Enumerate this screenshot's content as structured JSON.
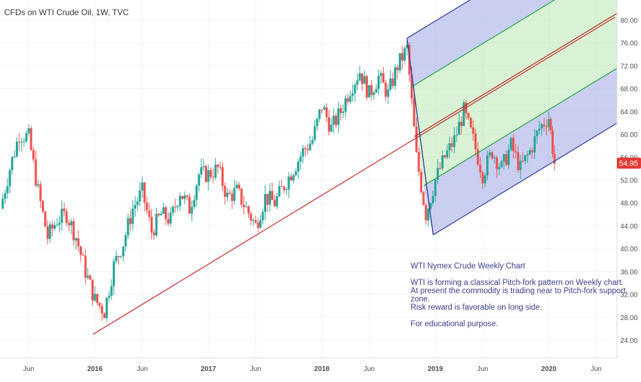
{
  "header": {
    "title": "CFDs on WTI Crude Oil, 1W, TVC"
  },
  "price_tag": {
    "value": "54.95",
    "color": "#e53935"
  },
  "annotation": {
    "lines": [
      "WTI Nymex Crude Weekly Chart",
      "",
      "WTI is forming a classical Pitch-fork pattern on Weekly chart.",
      "At present the commodity is trading near to Pitch-fork support",
      "zone.",
      "Risk reward is favorable on long side.",
      "",
      "For educational purpose."
    ]
  },
  "colors": {
    "up_candle": "#26a69a",
    "down_candle": "#ef5350",
    "trendline": "#c62828",
    "pitchfork_outer": "#283593",
    "pitchfork_inner": "#1b9e3e",
    "pitchfork_median": "#b71c1c",
    "zone_outer": "#9fa8e6",
    "zone_inner": "#b9e6b0",
    "grid": "#f0f3fa",
    "axis_text": "#4a4a4a"
  },
  "chart_data": {
    "type": "candlestick",
    "title": "CFDs on WTI Crude Oil, 1W, TVC",
    "x_axis": {
      "tick_labels": [
        "Jun",
        "2016",
        "Jun",
        "2017",
        "Jun",
        "2018",
        "Jun",
        "2019",
        "Jun",
        "2020",
        "Jun"
      ],
      "tick_dates": [
        "2015-06",
        "2016-01",
        "2016-06",
        "2017-01",
        "2017-06",
        "2018-01",
        "2018-06",
        "2019-01",
        "2019-06",
        "2020-01",
        "2020-06"
      ],
      "range": [
        "2015-03",
        "2020-08"
      ]
    },
    "y_axis": {
      "tick_labels": [
        "24.00",
        "28.00",
        "32.00",
        "36.00",
        "40.00",
        "44.00",
        "48.00",
        "52.00",
        "56.00",
        "60.00",
        "64.00",
        "68.00",
        "72.00",
        "76.00",
        "80.00"
      ],
      "range": [
        21.3,
        82.7
      ],
      "side": "right"
    },
    "grid": true,
    "last_price": 54.95,
    "price_path": [
      [
        "2015-03",
        47
      ],
      [
        "2015-04",
        54
      ],
      [
        "2015-05",
        60
      ],
      [
        "2015-06",
        59.5
      ],
      [
        "2015-07",
        50
      ],
      [
        "2015-08",
        42
      ],
      [
        "2015-09",
        45
      ],
      [
        "2015-10",
        46
      ],
      [
        "2015-11",
        42
      ],
      [
        "2015-12",
        36
      ],
      [
        "2016-01",
        31
      ],
      [
        "2016-02",
        29
      ],
      [
        "2016-03",
        37
      ],
      [
        "2016-04",
        41
      ],
      [
        "2016-05",
        47
      ],
      [
        "2016-06",
        50
      ],
      [
        "2016-07",
        43
      ],
      [
        "2016-08",
        46
      ],
      [
        "2016-09",
        45
      ],
      [
        "2016-10",
        50
      ],
      [
        "2016-11",
        47
      ],
      [
        "2016-12",
        53
      ],
      [
        "2017-01",
        53
      ],
      [
        "2017-02",
        54
      ],
      [
        "2017-03",
        49
      ],
      [
        "2017-04",
        50
      ],
      [
        "2017-05",
        47
      ],
      [
        "2017-06",
        44
      ],
      [
        "2017-07",
        49
      ],
      [
        "2017-08",
        48
      ],
      [
        "2017-09",
        51
      ],
      [
        "2017-10",
        54
      ],
      [
        "2017-11",
        57
      ],
      [
        "2017-12",
        59
      ],
      [
        "2018-01",
        65
      ],
      [
        "2018-02",
        61
      ],
      [
        "2018-03",
        64
      ],
      [
        "2018-04",
        68
      ],
      [
        "2018-05",
        71
      ],
      [
        "2018-06",
        67
      ],
      [
        "2018-07",
        70
      ],
      [
        "2018-08",
        67
      ],
      [
        "2018-09",
        72
      ],
      [
        "2018-10",
        75
      ],
      [
        "2018-11",
        56
      ],
      [
        "2018-12",
        46
      ],
      [
        "2019-01",
        52
      ],
      [
        "2019-02",
        56
      ],
      [
        "2019-03",
        59
      ],
      [
        "2019-04",
        64
      ],
      [
        "2019-05",
        59
      ],
      [
        "2019-06",
        53
      ],
      [
        "2019-07",
        57
      ],
      [
        "2019-08",
        54
      ],
      [
        "2019-09",
        58
      ],
      [
        "2019-10",
        54
      ],
      [
        "2019-11",
        57
      ],
      [
        "2019-12",
        61
      ],
      [
        "2020-01",
        63
      ],
      [
        "2020-01b",
        54.95
      ]
    ],
    "drawings": {
      "trendline": {
        "from": [
          "2015-12-25",
          25.0
        ],
        "to": [
          "2020-08",
          80.5
        ]
      },
      "pitchfork": {
        "pivot": [
          "2018-10-01",
          76.8
        ],
        "low_anchor": [
          "2018-12-24",
          42.4
        ],
        "median_origin": [
          "2018-10-24",
          59.6
        ],
        "lines": [
          "upper",
          "upper-inner",
          "median",
          "lower-inner",
          "lower"
        ]
      }
    }
  }
}
